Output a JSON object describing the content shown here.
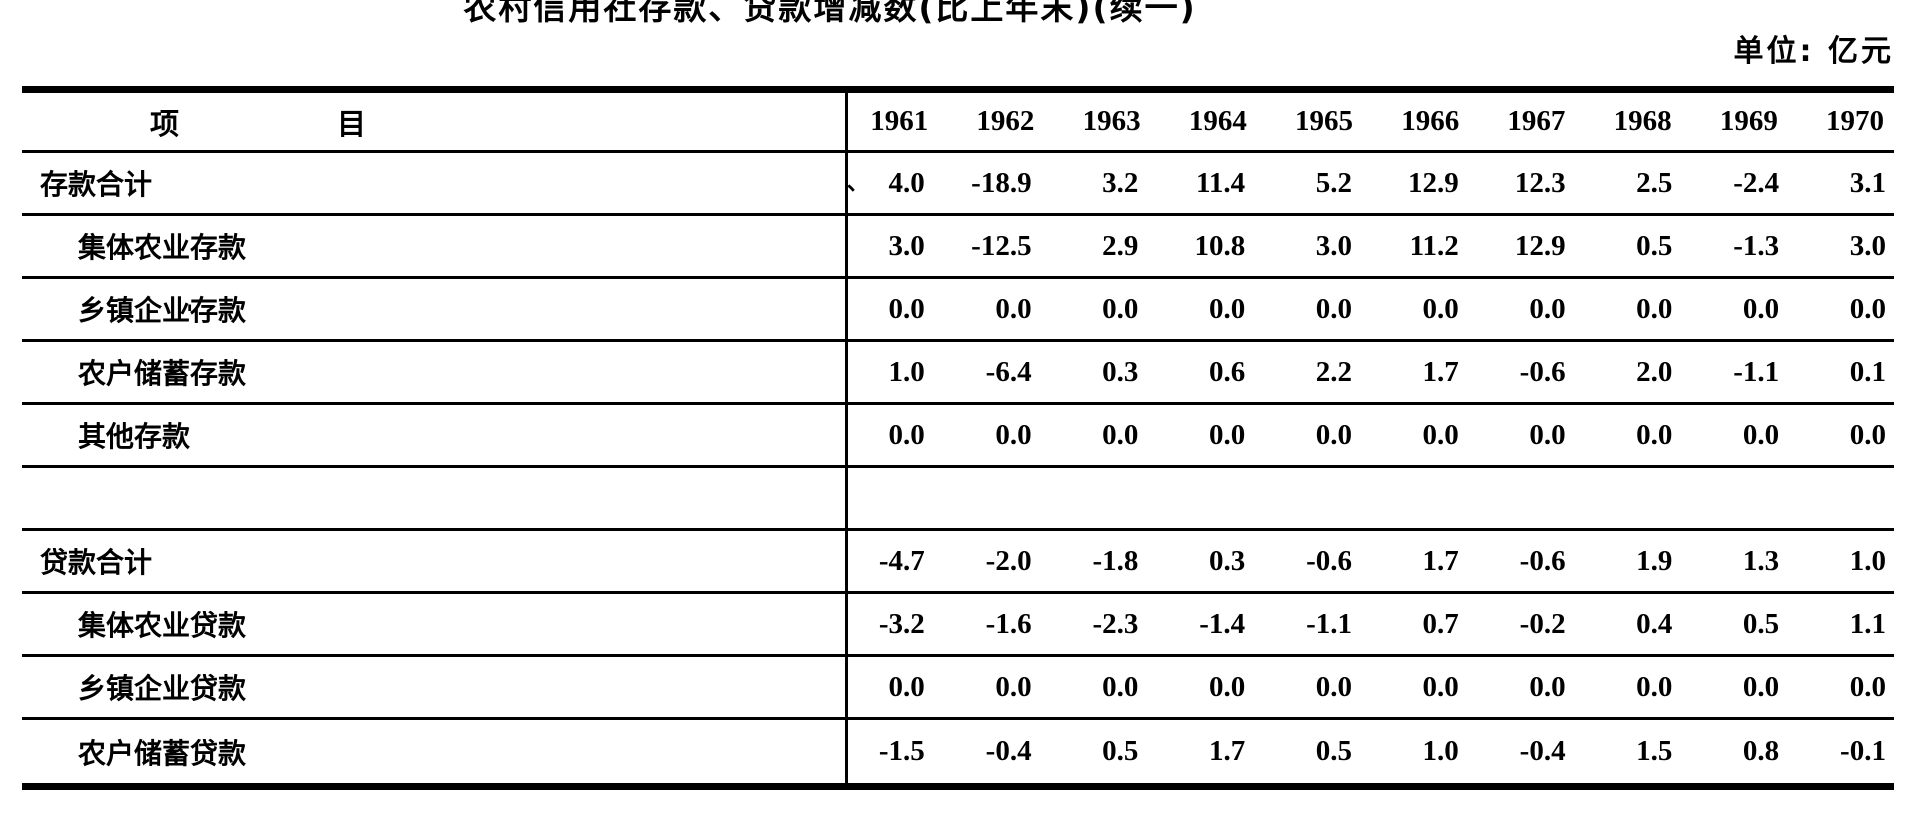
{
  "meta": {
    "title_clipped": "农村信用社存款、贷款增减数(比上年末)(续一)",
    "unit_label": "单位: 亿元",
    "ink_color": "#000000",
    "paper_color": "#ffffff"
  },
  "table": {
    "item_header_left": "项",
    "item_header_right": "目",
    "years": [
      "1961",
      "1962",
      "1963",
      "1964",
      "1965",
      "1966",
      "1967",
      "1968",
      "1969",
      "1970"
    ],
    "rows": [
      {
        "label": "存款合计",
        "indent": false,
        "artifact": "、",
        "values": [
          "4.0",
          "-18.9",
          "3.2",
          "11.4",
          "5.2",
          "12.9",
          "12.3",
          "2.5",
          "-2.4",
          "3.1"
        ]
      },
      {
        "label": "集体农业存款",
        "indent": true,
        "values": [
          "3.0",
          "-12.5",
          "2.9",
          "10.8",
          "3.0",
          "11.2",
          "12.9",
          "0.5",
          "-1.3",
          "3.0"
        ]
      },
      {
        "label": "乡镇企业存款",
        "indent": true,
        "values": [
          "0.0",
          "0.0",
          "0.0",
          "0.0",
          "0.0",
          "0.0",
          "0.0",
          "0.0",
          "0.0",
          "0.0"
        ]
      },
      {
        "label": "农户储蓄存款",
        "indent": true,
        "values": [
          "1.0",
          "-6.4",
          "0.3",
          "0.6",
          "2.2",
          "1.7",
          "-0.6",
          "2.0",
          "-1.1",
          "0.1"
        ]
      },
      {
        "label": "其他存款",
        "indent": true,
        "values": [
          "0.0",
          "0.0",
          "0.0",
          "0.0",
          "0.0",
          "0.0",
          "0.0",
          "0.0",
          "0.0",
          "0.0"
        ]
      },
      {
        "label": "",
        "indent": false,
        "empty": true,
        "values": [
          "",
          "",
          "",
          "",
          "",
          "",
          "",
          "",
          "",
          ""
        ]
      },
      {
        "label": "贷款合计",
        "indent": false,
        "values": [
          "-4.7",
          "-2.0",
          "-1.8",
          "0.3",
          "-0.6",
          "1.7",
          "-0.6",
          "1.9",
          "1.3",
          "1.0"
        ]
      },
      {
        "label": "集体农业贷款",
        "indent": true,
        "values": [
          "-3.2",
          "-1.6",
          "-2.3",
          "-1.4",
          "-1.1",
          "0.7",
          "-0.2",
          "0.4",
          "0.5",
          "1.1"
        ]
      },
      {
        "label": "乡镇企业贷款",
        "indent": true,
        "values": [
          "0.0",
          "0.0",
          "0.0",
          "0.0",
          "0.0",
          "0.0",
          "0.0",
          "0.0",
          "0.0",
          "0.0"
        ]
      },
      {
        "label": "农户储蓄贷款",
        "indent": true,
        "values": [
          "-1.5",
          "-0.4",
          "0.5",
          "1.7",
          "0.5",
          "1.0",
          "-0.4",
          "1.5",
          "0.8",
          "-0.1"
        ]
      }
    ],
    "stray_mark": "'"
  }
}
